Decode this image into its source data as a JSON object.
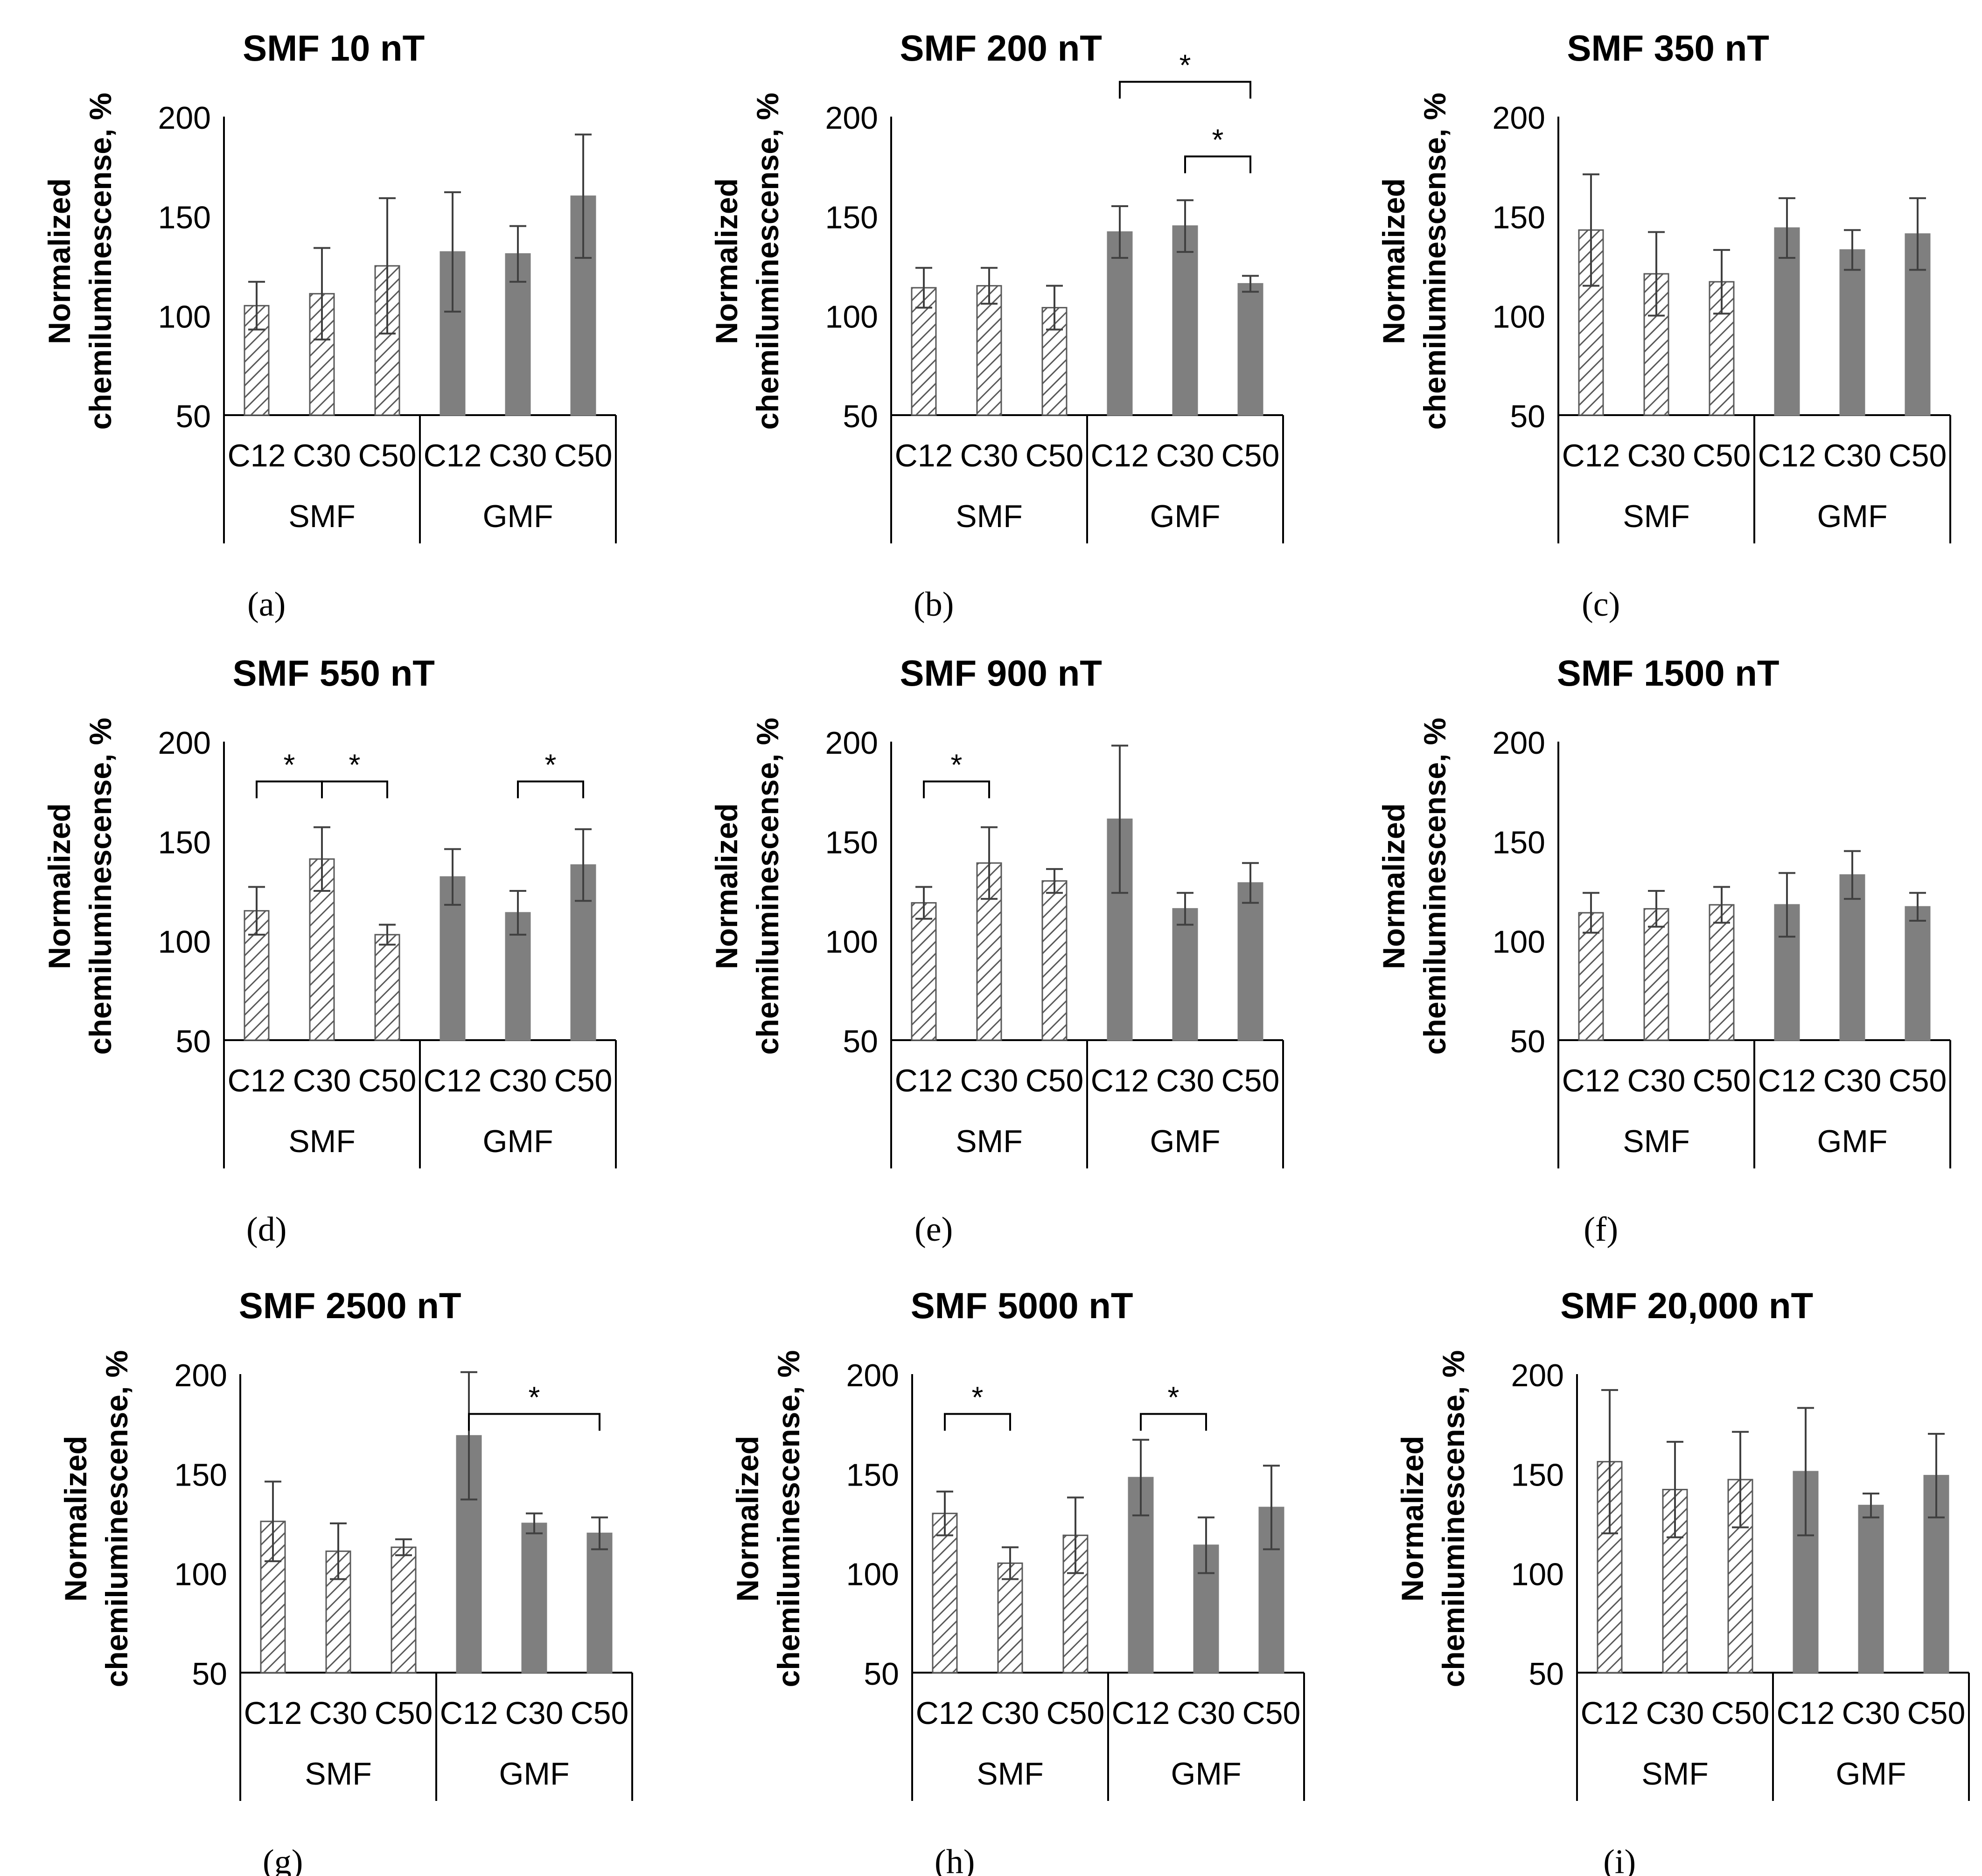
{
  "colors": {
    "solid": "#7f7f7f",
    "axis": "#000000",
    "hatch_stroke": "#595959",
    "error": "#404040"
  },
  "chart_data": [
    {
      "type": "bar",
      "letter": "(a)",
      "title": "SMF 10 nT",
      "ylabel_lines": [
        "Normalized",
        "chemiluminescense, %"
      ],
      "ylim": [
        50,
        200
      ],
      "yticks": [
        50,
        100,
        150,
        200
      ],
      "groups": [
        "SMF",
        "GMF"
      ],
      "categories": [
        "C12",
        "C30",
        "C50"
      ],
      "series": [
        {
          "name": "SMF",
          "style": "hatched",
          "values": [
            105,
            111,
            125
          ],
          "errors": [
            12,
            23,
            34
          ]
        },
        {
          "name": "GMF",
          "style": "solid",
          "values": [
            132,
            131,
            160
          ],
          "errors": [
            30,
            14,
            31
          ]
        }
      ],
      "significance": []
    },
    {
      "type": "bar",
      "letter": "(b)",
      "title": "SMF 200 nT",
      "ylabel_lines": [
        "Normalized",
        "chemiluminescense, %"
      ],
      "ylim": [
        50,
        200
      ],
      "yticks": [
        50,
        100,
        150,
        200
      ],
      "groups": [
        "SMF",
        "GMF"
      ],
      "categories": [
        "C12",
        "C30",
        "C50"
      ],
      "series": [
        {
          "name": "SMF",
          "style": "hatched",
          "values": [
            114,
            115,
            104
          ],
          "errors": [
            10,
            9,
            11
          ]
        },
        {
          "name": "GMF",
          "style": "solid",
          "values": [
            142,
            145,
            116
          ],
          "errors": [
            13,
            13,
            4
          ]
        }
      ],
      "significance": [
        {
          "from": 3,
          "to": 5,
          "level": 1,
          "label": "*"
        },
        {
          "from": 4,
          "to": 5,
          "level": 0,
          "label": "*"
        }
      ]
    },
    {
      "type": "bar",
      "letter": "(c)",
      "title": "SMF 350 nT",
      "ylabel_lines": [
        "Normalized",
        "chemiluminescense, %"
      ],
      "ylim": [
        50,
        200
      ],
      "yticks": [
        50,
        100,
        150,
        200
      ],
      "groups": [
        "SMF",
        "GMF"
      ],
      "categories": [
        "C12",
        "C30",
        "C50"
      ],
      "series": [
        {
          "name": "SMF",
          "style": "hatched",
          "values": [
            143,
            121,
            117
          ],
          "errors": [
            28,
            21,
            16
          ]
        },
        {
          "name": "GMF",
          "style": "solid",
          "values": [
            144,
            133,
            141
          ],
          "errors": [
            15,
            10,
            18
          ]
        }
      ],
      "significance": []
    },
    {
      "type": "bar",
      "letter": "(d)",
      "title": "SMF 550 nT",
      "ylabel_lines": [
        "Normalized",
        "chemiluminescense, %"
      ],
      "ylim": [
        50,
        200
      ],
      "yticks": [
        50,
        100,
        150,
        200
      ],
      "groups": [
        "SMF",
        "GMF"
      ],
      "categories": [
        "C12",
        "C30",
        "C50"
      ],
      "series": [
        {
          "name": "SMF",
          "style": "hatched",
          "values": [
            115,
            141,
            103
          ],
          "errors": [
            12,
            16,
            5
          ]
        },
        {
          "name": "GMF",
          "style": "solid",
          "values": [
            132,
            114,
            138
          ],
          "errors": [
            14,
            11,
            18
          ]
        }
      ],
      "significance": [
        {
          "from": 0,
          "to": 1,
          "level": 0,
          "label": "*"
        },
        {
          "from": 1,
          "to": 2,
          "level": 0,
          "label": "*"
        },
        {
          "from": 4,
          "to": 5,
          "level": 0,
          "label": "*"
        }
      ]
    },
    {
      "type": "bar",
      "letter": "(e)",
      "title": "SMF 900 nT",
      "ylabel_lines": [
        "Normalized",
        "chemiluminescense, %"
      ],
      "ylim": [
        50,
        200
      ],
      "yticks": [
        50,
        100,
        150,
        200
      ],
      "groups": [
        "SMF",
        "GMF"
      ],
      "categories": [
        "C12",
        "C30",
        "C50"
      ],
      "series": [
        {
          "name": "SMF",
          "style": "hatched",
          "values": [
            119,
            139,
            130
          ],
          "errors": [
            8,
            18,
            6
          ]
        },
        {
          "name": "GMF",
          "style": "solid",
          "values": [
            161,
            116,
            129
          ],
          "errors": [
            37,
            8,
            10
          ]
        }
      ],
      "significance": [
        {
          "from": 0,
          "to": 1,
          "level": 0,
          "label": "*"
        }
      ]
    },
    {
      "type": "bar",
      "letter": "(f)",
      "title": "SMF 1500 nT",
      "ylabel_lines": [
        "Normalized",
        "chemiluminescense, %"
      ],
      "ylim": [
        50,
        200
      ],
      "yticks": [
        50,
        100,
        150,
        200
      ],
      "groups": [
        "SMF",
        "GMF"
      ],
      "categories": [
        "C12",
        "C30",
        "C50"
      ],
      "series": [
        {
          "name": "SMF",
          "style": "hatched",
          "values": [
            114,
            116,
            118
          ],
          "errors": [
            10,
            9,
            9
          ]
        },
        {
          "name": "GMF",
          "style": "solid",
          "values": [
            118,
            133,
            117
          ],
          "errors": [
            16,
            12,
            7
          ]
        }
      ],
      "significance": []
    },
    {
      "type": "bar",
      "letter": "(g)",
      "title": "SMF 2500 nT",
      "ylabel_lines": [
        "Normalized",
        "chemiluminescense, %"
      ],
      "ylim": [
        50,
        200
      ],
      "yticks": [
        50,
        100,
        150,
        200
      ],
      "groups": [
        "SMF",
        "GMF"
      ],
      "categories": [
        "C12",
        "C30",
        "C50"
      ],
      "series": [
        {
          "name": "SMF",
          "style": "hatched",
          "values": [
            126,
            111,
            113
          ],
          "errors": [
            20,
            14,
            4
          ]
        },
        {
          "name": "GMF",
          "style": "solid",
          "values": [
            169,
            125,
            120
          ],
          "errors": [
            32,
            5,
            8
          ]
        }
      ],
      "significance": [
        {
          "from": 3,
          "to": 5,
          "level": 0,
          "label": "*"
        }
      ]
    },
    {
      "type": "bar",
      "letter": "(h)",
      "title": "SMF 5000 nT",
      "ylabel_lines": [
        "Normalized",
        "chemiluminescense, %"
      ],
      "ylim": [
        50,
        200
      ],
      "yticks": [
        50,
        100,
        150,
        200
      ],
      "groups": [
        "SMF",
        "GMF"
      ],
      "categories": [
        "C12",
        "C30",
        "C50"
      ],
      "series": [
        {
          "name": "SMF",
          "style": "hatched",
          "values": [
            130,
            105,
            119
          ],
          "errors": [
            11,
            8,
            19
          ]
        },
        {
          "name": "GMF",
          "style": "solid",
          "values": [
            148,
            114,
            133
          ],
          "errors": [
            19,
            14,
            21
          ]
        }
      ],
      "significance": [
        {
          "from": 0,
          "to": 1,
          "level": 0,
          "label": "*"
        },
        {
          "from": 3,
          "to": 4,
          "level": 0,
          "label": "*"
        }
      ]
    },
    {
      "type": "bar",
      "letter": "(i)",
      "title": "SMF 20,000 nT",
      "ylabel_lines": [
        "Normalized",
        "chemiluminescense, %"
      ],
      "ylim": [
        50,
        200
      ],
      "yticks": [
        50,
        100,
        150,
        200
      ],
      "groups": [
        "SMF",
        "GMF"
      ],
      "categories": [
        "C12",
        "C30",
        "C50"
      ],
      "series": [
        {
          "name": "SMF",
          "style": "hatched",
          "values": [
            156,
            142,
            147
          ],
          "errors": [
            36,
            24,
            24
          ]
        },
        {
          "name": "GMF",
          "style": "solid",
          "values": [
            151,
            134,
            149
          ],
          "errors": [
            32,
            6,
            21
          ]
        }
      ],
      "significance": []
    }
  ]
}
